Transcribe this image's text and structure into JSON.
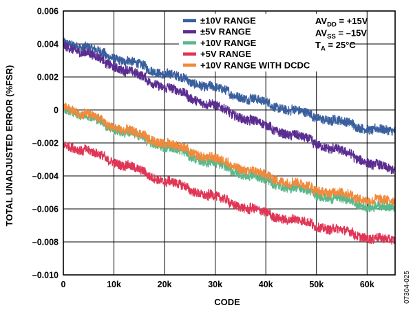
{
  "chart_data": {
    "type": "line",
    "title": "",
    "xlabel": "CODE",
    "ylabel": "TOTAL UNADJUSTED ERROR (%FSR)",
    "xlim": [
      0,
      65535
    ],
    "ylim": [
      -0.01,
      0.006
    ],
    "x_ticks": [
      {
        "value": 0,
        "label": "0"
      },
      {
        "value": 10000,
        "label": "10k"
      },
      {
        "value": 20000,
        "label": "20k"
      },
      {
        "value": 30000,
        "label": "30k"
      },
      {
        "value": 40000,
        "label": "40k"
      },
      {
        "value": 50000,
        "label": "50k"
      },
      {
        "value": 60000,
        "label": "60k"
      }
    ],
    "y_ticks": [
      {
        "value": 0.006,
        "label": "0.006"
      },
      {
        "value": 0.004,
        "label": "0.004"
      },
      {
        "value": 0.002,
        "label": "0.002"
      },
      {
        "value": 0,
        "label": "0"
      },
      {
        "value": -0.002,
        "label": "–0.002"
      },
      {
        "value": -0.004,
        "label": "–0.004"
      },
      {
        "value": -0.006,
        "label": "–0.006"
      },
      {
        "value": -0.008,
        "label": "–0.008"
      },
      {
        "value": -0.01,
        "label": "–0.010"
      }
    ],
    "grid": true,
    "legend_position": "top-right",
    "conditions": [
      "AVDD = +15V",
      "AVSS = –15V",
      "TA = 25°C"
    ],
    "series": [
      {
        "name": "±10V RANGE",
        "color": "#3a5f9e",
        "x": [
          0,
          10000,
          20000,
          30000,
          40000,
          50000,
          60000,
          65535
        ],
        "y": [
          0.0042,
          0.0032,
          0.0022,
          0.0013,
          0.0004,
          -0.0004,
          -0.0011,
          -0.0014
        ]
      },
      {
        "name": "±5V RANGE",
        "color": "#5b2d91",
        "x": [
          0,
          10000,
          20000,
          30000,
          40000,
          50000,
          60000,
          65535
        ],
        "y": [
          0.004,
          0.0027,
          0.0014,
          0.0002,
          -0.001,
          -0.002,
          -0.0031,
          -0.0038
        ]
      },
      {
        "name": "+10V RANGE",
        "color": "#5cb88b",
        "x": [
          0,
          10000,
          20000,
          30000,
          40000,
          50000,
          60000,
          65535
        ],
        "y": [
          0.0002,
          -0.0011,
          -0.0022,
          -0.0033,
          -0.0043,
          -0.0051,
          -0.0058,
          -0.006
        ]
      },
      {
        "name": "+5V RANGE",
        "color": "#e03656",
        "x": [
          0,
          10000,
          20000,
          30000,
          40000,
          50000,
          60000,
          65535
        ],
        "y": [
          -0.002,
          -0.0031,
          -0.0043,
          -0.0053,
          -0.0063,
          -0.007,
          -0.0077,
          -0.008
        ]
      },
      {
        "name": "+10V RANGE WITH DCDC",
        "color": "#f18a3c",
        "x": [
          0,
          10000,
          20000,
          30000,
          40000,
          50000,
          60000,
          65535
        ],
        "y": [
          0.0003,
          -0.001,
          -0.002,
          -0.003,
          -0.004,
          -0.0048,
          -0.0054,
          -0.0056
        ]
      }
    ]
  },
  "figure_id": "07304-025"
}
